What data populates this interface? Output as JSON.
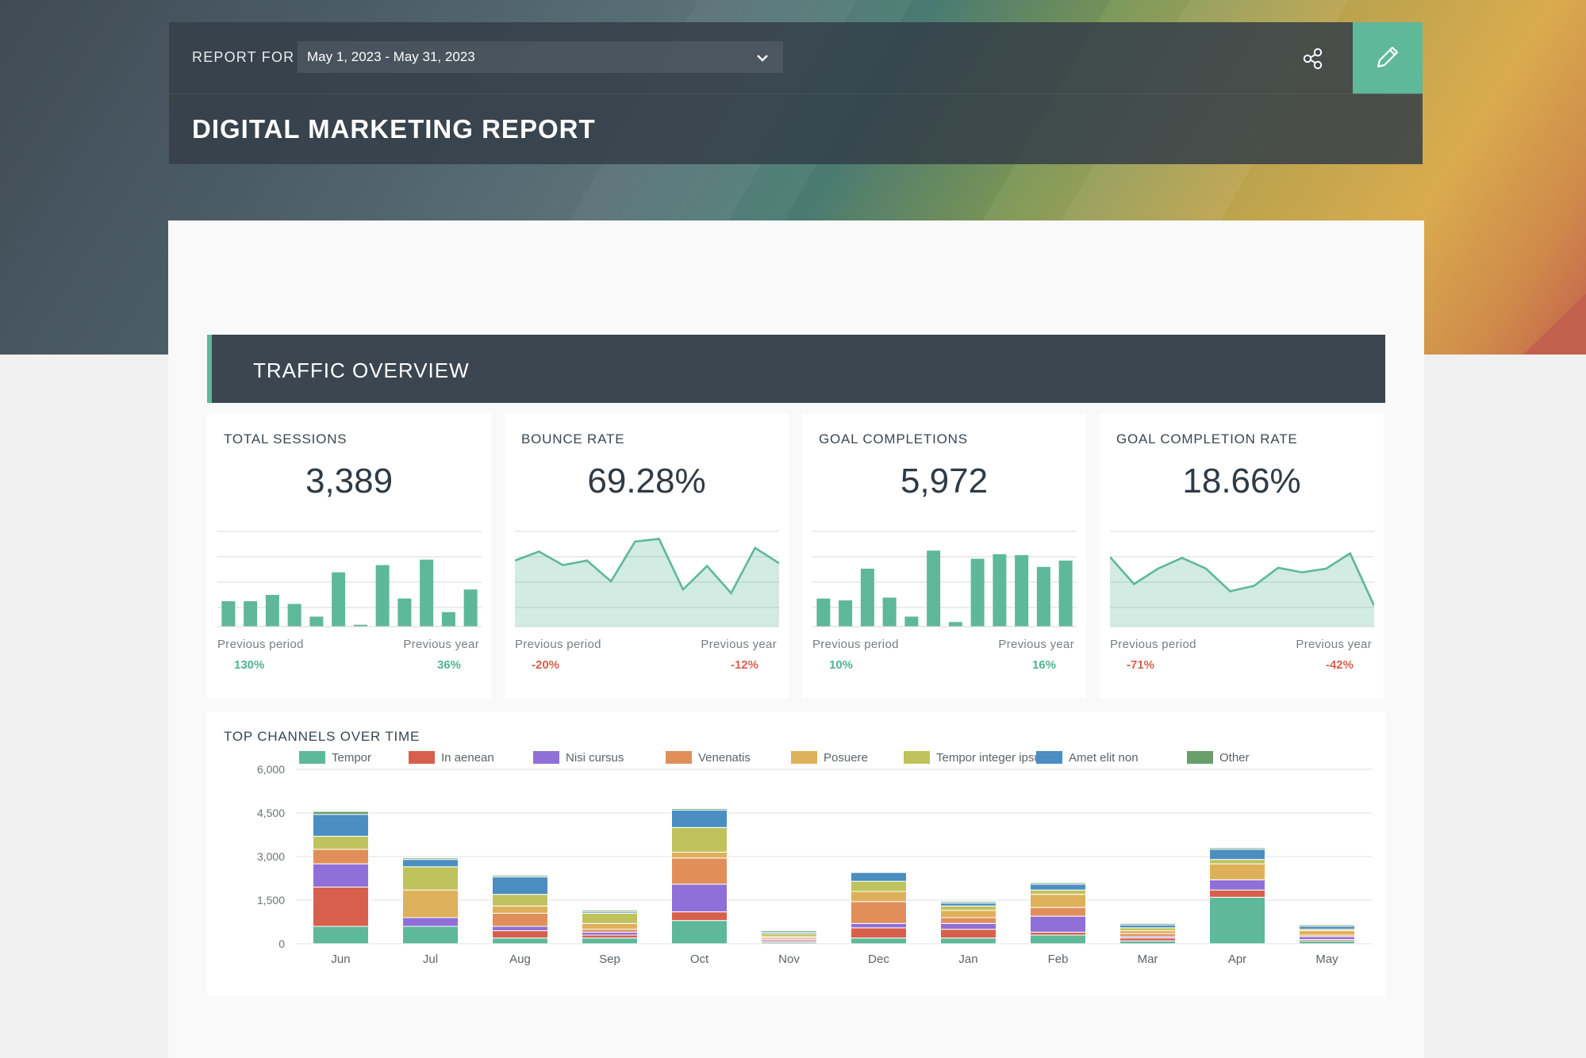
{
  "header": {
    "report_for_label": "REPORT FOR",
    "date_range": "May 1, 2023 - May 31, 2023",
    "title": "DIGITAL MARKETING REPORT",
    "share_icon": "share-icon",
    "edit_icon": "pencil-icon"
  },
  "colors": {
    "accent": "#5eb89a",
    "header_bg": "#343f48",
    "positive": "#4fb391",
    "negative": "#d7604c"
  },
  "section": {
    "title": "TRAFFIC OVERVIEW"
  },
  "kpis": [
    {
      "label": "TOTAL SESSIONS",
      "value": "3,389",
      "chart": "bar",
      "spark": [
        0.28,
        0.28,
        0.35,
        0.25,
        0.11,
        0.6,
        0.02,
        0.68,
        0.31,
        0.74,
        0.16,
        0.41
      ],
      "prev_period_label": "Previous period",
      "prev_period_value": "130%",
      "prev_period_trend": "positive",
      "prev_year_label": "Previous year",
      "prev_year_value": "36%",
      "prev_year_trend": "positive"
    },
    {
      "label": "BOUNCE RATE",
      "value": "69.28%",
      "chart": "area",
      "spark": [
        0.73,
        0.83,
        0.68,
        0.73,
        0.5,
        0.94,
        0.97,
        0.41,
        0.67,
        0.37,
        0.87,
        0.7
      ],
      "prev_period_label": "Previous period",
      "prev_period_value": "-20%",
      "prev_period_trend": "negative",
      "prev_year_label": "Previous year",
      "prev_year_value": "-12%",
      "prev_year_trend": "negative"
    },
    {
      "label": "GOAL COMPLETIONS",
      "value": "5,972",
      "chart": "bar",
      "spark": [
        0.31,
        0.29,
        0.64,
        0.32,
        0.11,
        0.84,
        0.05,
        0.75,
        0.8,
        0.79,
        0.66,
        0.73
      ],
      "prev_period_label": "Previous period",
      "prev_period_value": "10%",
      "prev_period_trend": "positive",
      "prev_year_label": "Previous year",
      "prev_year_value": "16%",
      "prev_year_trend": "positive"
    },
    {
      "label": "GOAL COMPLETION RATE",
      "value": "18.66%",
      "chart": "area",
      "spark": [
        0.77,
        0.47,
        0.64,
        0.76,
        0.64,
        0.39,
        0.45,
        0.65,
        0.6,
        0.64,
        0.81,
        0.23
      ],
      "prev_period_label": "Previous period",
      "prev_period_value": "-71%",
      "prev_period_trend": "negative",
      "prev_year_label": "Previous year",
      "prev_year_value": "-42%",
      "prev_year_trend": "negative"
    }
  ],
  "channels": {
    "title": "TOP CHANNELS OVER TIME"
  },
  "chart_data": {
    "type": "bar",
    "stacked": true,
    "categories": [
      "Jun",
      "Jul",
      "Aug",
      "Sep",
      "Oct",
      "Nov",
      "Dec",
      "Jan",
      "Feb",
      "Mar",
      "Apr",
      "May"
    ],
    "ylim": [
      0,
      6000
    ],
    "yticks": [
      "6,000",
      "4,500",
      "3,000",
      "1,500",
      "0"
    ],
    "ytick_values": [
      6000,
      4500,
      3000,
      1500,
      0
    ],
    "grid": true,
    "legend_position": "top",
    "series": [
      {
        "name": "Tempor",
        "color": "#5eb89a",
        "values": [
          600,
          600,
          200,
          200,
          800,
          50,
          200,
          200,
          300,
          100,
          1600,
          100
        ]
      },
      {
        "name": "In aenean",
        "color": "#d7604c",
        "values": [
          1350,
          0,
          250,
          100,
          300,
          50,
          350,
          300,
          100,
          100,
          250,
          50
        ]
      },
      {
        "name": "Nisi cursus",
        "color": "#8f6fd8",
        "values": [
          800,
          300,
          150,
          100,
          950,
          50,
          150,
          200,
          550,
          50,
          350,
          100
        ]
      },
      {
        "name": "Venenatis",
        "color": "#e08f5a",
        "values": [
          500,
          0,
          450,
          100,
          900,
          50,
          750,
          200,
          300,
          100,
          0,
          50
        ]
      },
      {
        "name": "Posuere",
        "color": "#dfb05a",
        "values": [
          0,
          950,
          250,
          200,
          200,
          50,
          350,
          250,
          450,
          100,
          550,
          150
        ]
      },
      {
        "name": "Tempor integer ipsum",
        "color": "#bfc35c",
        "values": [
          450,
          800,
          400,
          350,
          850,
          100,
          350,
          150,
          150,
          100,
          150,
          50
        ]
      },
      {
        "name": "Amet elit non",
        "color": "#4a8ec2",
        "values": [
          750,
          250,
          600,
          50,
          600,
          50,
          300,
          100,
          200,
          100,
          350,
          100
        ]
      },
      {
        "name": "Other",
        "color": "#6a9e6a",
        "values": [
          100,
          50,
          50,
          50,
          50,
          50,
          0,
          50,
          50,
          50,
          50,
          50
        ]
      }
    ]
  }
}
